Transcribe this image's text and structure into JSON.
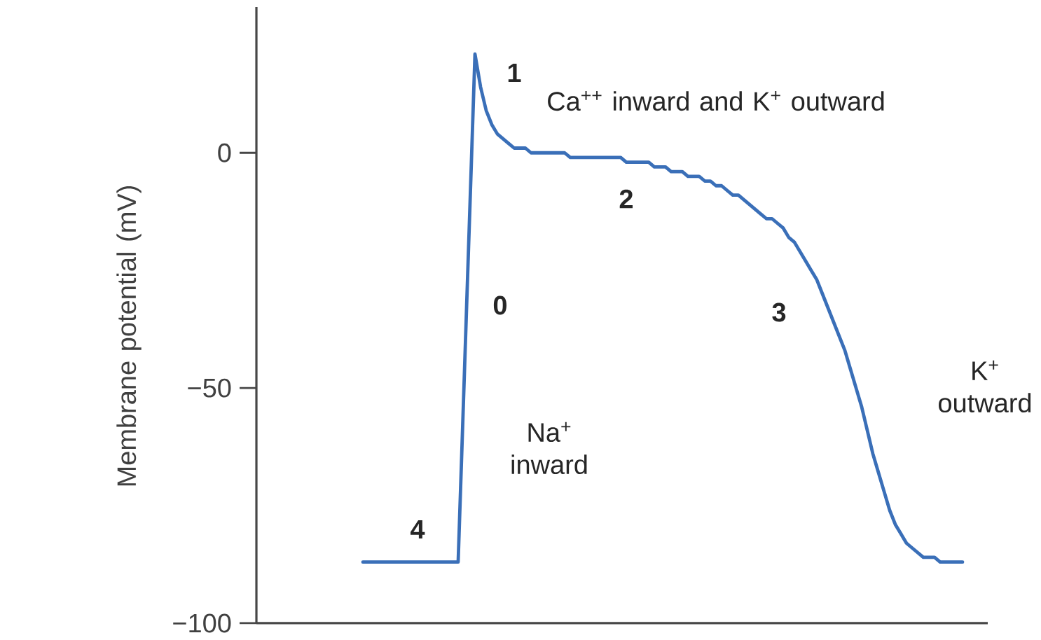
{
  "chart_data": {
    "type": "line",
    "ylabel": "Membrane potential (mV)",
    "categories": [
      null,
      null,
      null,
      null,
      null,
      null,
      null,
      null,
      null,
      null,
      null,
      null,
      null,
      null,
      null,
      null,
      null,
      null,
      null,
      null,
      null,
      null,
      null,
      null,
      null,
      null,
      null,
      null,
      null,
      null,
      null,
      null,
      null,
      null,
      null,
      null,
      null,
      null,
      null,
      null,
      null,
      null,
      null,
      null,
      null,
      null,
      null,
      null,
      null,
      null,
      null,
      null,
      null,
      null,
      null,
      null,
      null,
      null,
      null,
      null,
      null,
      null,
      null,
      null,
      null,
      null,
      null,
      null,
      null,
      null,
      null,
      null,
      null,
      null,
      null,
      null,
      null,
      null,
      null,
      null,
      null,
      null,
      null,
      null,
      null,
      null,
      null,
      null,
      null,
      null,
      null,
      null,
      null,
      null,
      null,
      null,
      null,
      null,
      null,
      null,
      null,
      null,
      null,
      null,
      null,
      null,
      null,
      null
    ],
    "series": [
      {
        "color": "#3a6fb8",
        "values": [
          -87,
          -87,
          -87,
          -87,
          -87,
          -87,
          -87,
          -87,
          -87,
          -87,
          -87,
          -87,
          -87,
          -87,
          -87,
          -87,
          -87,
          -87,
          -51,
          -15,
          21,
          14,
          9,
          6,
          4,
          3,
          2,
          1,
          1,
          1,
          0,
          0,
          0,
          0,
          0,
          0,
          0,
          -1,
          -1,
          -1,
          -1,
          -1,
          -1,
          -1,
          -1,
          -1,
          -1,
          -2,
          -2,
          -2,
          -2,
          -2,
          -3,
          -3,
          -3,
          -4,
          -4,
          -4,
          -5,
          -5,
          -5,
          -6,
          -6,
          -7,
          -7,
          -8,
          -9,
          -9,
          -10,
          -11,
          -12,
          -13,
          -14,
          -14,
          -15,
          -16,
          -18,
          -19,
          -21,
          -23,
          -25,
          -27,
          -30,
          -33,
          -36,
          -39,
          -42,
          -46,
          -50,
          -54,
          -59,
          -64,
          -68,
          -72,
          -76,
          -79,
          -81,
          -83,
          -84,
          -85,
          -86,
          -86,
          -86,
          -87,
          -87,
          -87,
          -87,
          -87
        ]
      }
    ],
    "ylim": [
      -100,
      31
    ],
    "yticks": [
      {
        "value": 0,
        "label": "0"
      },
      {
        "value": -50,
        "label": "−50"
      },
      {
        "value": -100,
        "label": "−100"
      }
    ],
    "tick_labels": "y",
    "grid": false,
    "annotations": [
      "1",
      "Ca$^{++}$ inward and K$^{+}$ outward",
      "2",
      "0",
      "3",
      "K$^{+}$ outward",
      "Na$^{+}$ inward",
      "4"
    ]
  }
}
